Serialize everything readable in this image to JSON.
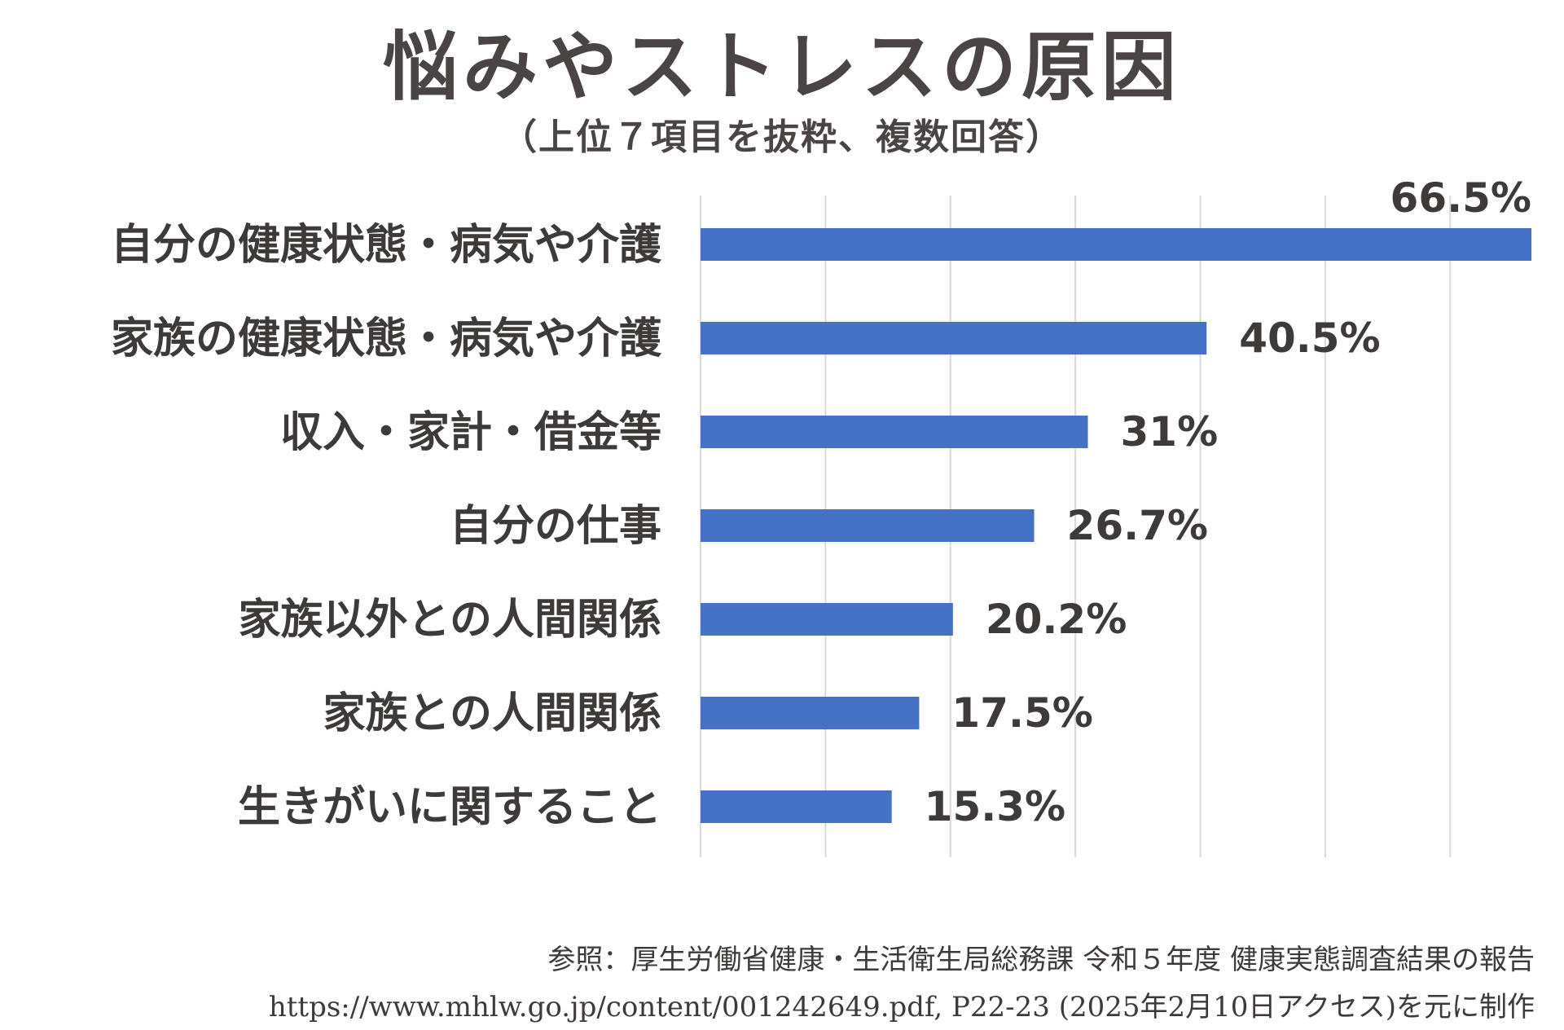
{
  "title": "悩みやストレスの原因",
  "subtitle": "（上位７項目を抜粋、複数回答）",
  "chart_data": {
    "type": "bar",
    "orientation": "horizontal",
    "categories": [
      "自分の健康状態・病気や介護",
      "家族の健康状態・病気や介護",
      "収入・家計・借金等",
      "自分の仕事",
      "家族以外との人間関係",
      "家族との人間関係",
      "生きがいに関すること"
    ],
    "values": [
      66.5,
      40.5,
      31,
      26.7,
      20.2,
      17.5,
      15.3
    ],
    "value_labels": [
      "66.5%",
      "40.5%",
      "31%",
      "26.7%",
      "20.2%",
      "17.5%",
      "15.3%"
    ],
    "xlim": [
      0,
      66.5
    ],
    "grid": true,
    "bar_color": "#4472c4",
    "grid_color": "#d9d9d9"
  },
  "source": {
    "line1": "参照：厚生労働省健康・生活衛生局総務課 令和５年度 健康実態調査結果の報告",
    "line2": "https://www.mhlw.go.jp/content/001242649.pdf, P22-23 (2025年2月10日アクセス)を元に制作"
  }
}
